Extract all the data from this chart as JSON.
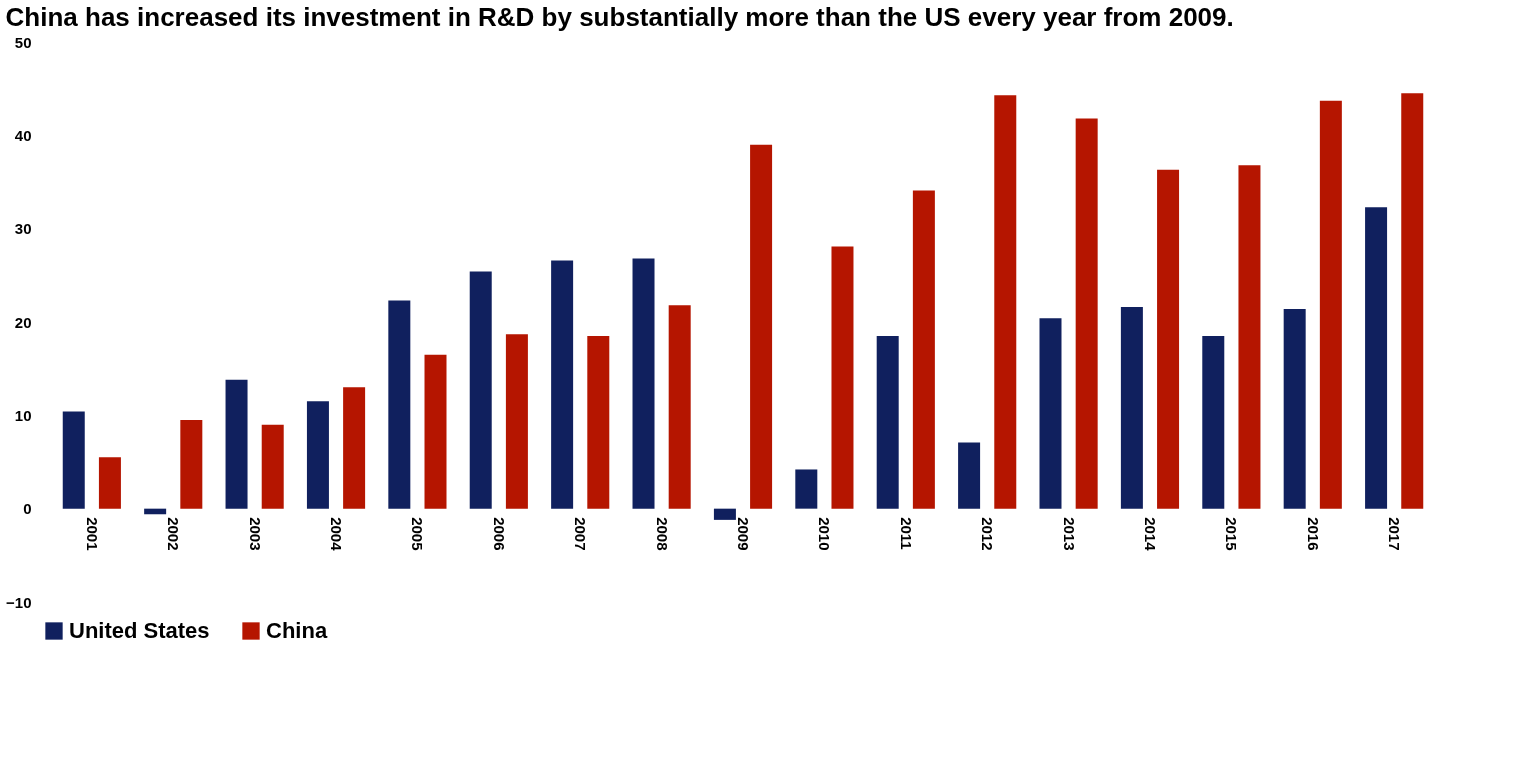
{
  "chart_data": {
    "type": "bar",
    "title": "China has increased its investment in R&D by substantially more than the US every year from 2009.",
    "categories": [
      "2001",
      "2002",
      "2003",
      "2004",
      "2005",
      "2006",
      "2007",
      "2008",
      "2009",
      "2010",
      "2011",
      "2012",
      "2013",
      "2014",
      "2015",
      "2016",
      "2017"
    ],
    "series": [
      {
        "name": "United States",
        "color": "#10205e",
        "values": [
          10.4,
          -0.6,
          13.8,
          11.5,
          22.3,
          25.4,
          26.6,
          26.8,
          -1.2,
          4.2,
          18.5,
          7.1,
          20.4,
          21.6,
          18.5,
          21.4,
          32.3
        ]
      },
      {
        "name": "China",
        "color": "#b51500",
        "values": [
          5.5,
          9.5,
          9.0,
          13.0,
          16.5,
          18.7,
          18.5,
          21.8,
          39.0,
          28.1,
          34.1,
          44.3,
          41.8,
          36.3,
          36.8,
          43.7,
          44.5
        ]
      }
    ],
    "ylim": [
      -10,
      50
    ],
    "yticks": [
      -10,
      0,
      10,
      20,
      30,
      40,
      50
    ],
    "grid": false,
    "legend": "bottom"
  }
}
